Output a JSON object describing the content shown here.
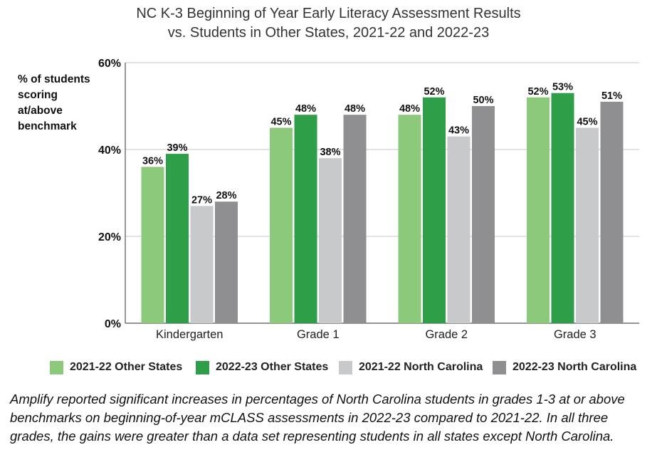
{
  "title_line1": "NC K-3 Beginning of Year Early Literacy Assessment Results",
  "title_line2": "vs. Students in Other States, 2021-22 and 2022-23",
  "caption": "Amplify reported significant increases in percentages of North Carolina students in grades 1-3 at or above benchmarks on beginning-of-year mCLASS assessments in 2022-23 compared to 2021-22. In all three grades, the gains were greater than a data set representing students in all states except North Carolina.",
  "chart_data": {
    "type": "bar",
    "title": "NC K-3 Beginning of Year Early Literacy Assessment Results vs. Students in Other States, 2021-22 and 2022-23",
    "ylabel": "% of students scoring at/above benchmark",
    "ylabel_lines": [
      "% of students",
      "scoring",
      "at/above",
      "benchmark"
    ],
    "xlabel": "",
    "categories": [
      "Kindergarten",
      "Grade 1",
      "Grade 2",
      "Grade 3"
    ],
    "ylim": [
      0,
      60
    ],
    "yticks": [
      0,
      20,
      40,
      60
    ],
    "ytick_labels": [
      "0%",
      "20%",
      "40%",
      "60%"
    ],
    "grid": true,
    "legend_position": "bottom",
    "series": [
      {
        "name": "2021-22 Other States",
        "color": "#8cc97a",
        "values": [
          36,
          45,
          48,
          52
        ]
      },
      {
        "name": "2022-23 Other States",
        "color": "#2e9e48",
        "values": [
          39,
          48,
          52,
          53
        ]
      },
      {
        "name": "2021-22 North Carolina",
        "color": "#c8c9cb",
        "values": [
          27,
          38,
          43,
          45
        ]
      },
      {
        "name": "2022-23 North Carolina",
        "color": "#8f8f91",
        "values": [
          28,
          48,
          50,
          51
        ]
      }
    ]
  }
}
